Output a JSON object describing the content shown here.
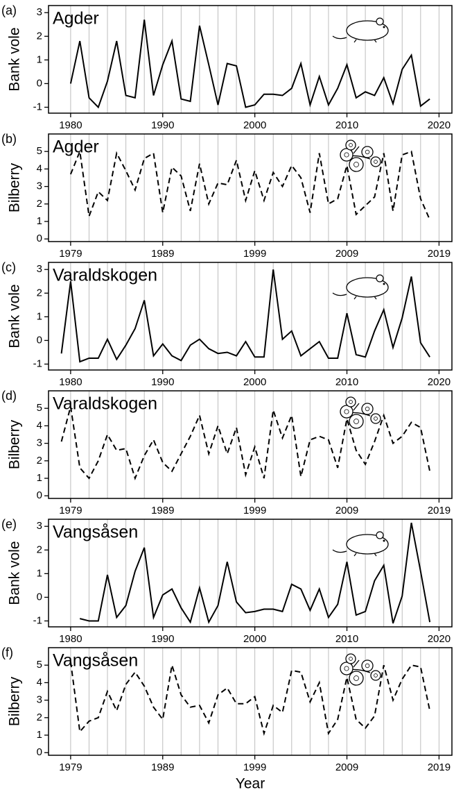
{
  "chart_data": [
    {
      "type": "line",
      "panel": "(a)",
      "title": "Agder",
      "ylabel": "Bank vole",
      "color": "#000000",
      "line_style": "solid",
      "x": [
        1980,
        1981,
        1982,
        1983,
        1984,
        1985,
        1986,
        1987,
        1988,
        1989,
        1990,
        1991,
        1992,
        1993,
        1994,
        1995,
        1996,
        1997,
        1998,
        1999,
        2000,
        2001,
        2002,
        2003,
        2004,
        2005,
        2006,
        2007,
        2008,
        2009,
        2010,
        2011,
        2012,
        2013,
        2014,
        2015,
        2016,
        2017,
        2018,
        2019
      ],
      "values": [
        0.0,
        1.8,
        -0.6,
        -1.0,
        0.1,
        1.8,
        -0.5,
        -0.6,
        2.7,
        -0.5,
        0.8,
        1.8,
        -0.65,
        -0.75,
        2.45,
        0.8,
        -0.9,
        0.85,
        0.75,
        -1.0,
        -0.9,
        -0.45,
        -0.45,
        -0.5,
        -0.2,
        0.85,
        -0.9,
        0.3,
        -0.9,
        -0.2,
        0.8,
        -0.6,
        -0.35,
        -0.5,
        0.25,
        -0.85,
        0.6,
        1.2,
        -0.95,
        -0.65
      ],
      "xlim": [
        1977.6,
        2021.4
      ],
      "xticks": [
        1980,
        1990,
        2000,
        2010,
        2020
      ],
      "xgrid": [
        1980,
        1982,
        1984,
        1986,
        1988,
        1990,
        1992,
        1994,
        1996,
        1998,
        2000,
        2002,
        2004,
        2006,
        2008,
        2010,
        2012,
        2014,
        2016,
        2018,
        2020
      ],
      "ylim": [
        -1.25,
        3.3
      ],
      "yticks": [
        -1,
        0,
        1,
        2,
        3
      ],
      "icon": "vole"
    },
    {
      "type": "line",
      "panel": "(b)",
      "title": "Agder",
      "ylabel": "Bilberry",
      "color": "#000000",
      "line_style": "dashed",
      "x": [
        1979,
        1980,
        1981,
        1982,
        1983,
        1984,
        1985,
        1986,
        1987,
        1988,
        1989,
        1990,
        1991,
        1992,
        1993,
        1994,
        1995,
        1996,
        1997,
        1998,
        1999,
        2000,
        2001,
        2002,
        2003,
        2004,
        2005,
        2006,
        2007,
        2008,
        2009,
        2010,
        2011,
        2012,
        2013,
        2014,
        2015,
        2016,
        2017,
        2018
      ],
      "values": [
        3.7,
        5.0,
        1.3,
        2.7,
        2.2,
        4.9,
        3.9,
        2.8,
        4.6,
        4.9,
        1.5,
        4.1,
        3.6,
        1.6,
        4.3,
        2.0,
        3.2,
        3.1,
        4.5,
        2.2,
        3.9,
        2.2,
        3.8,
        3.0,
        4.2,
        3.5,
        1.5,
        4.9,
        2.0,
        2.3,
        4.2,
        1.4,
        1.9,
        2.4,
        4.9,
        1.6,
        4.8,
        5.0,
        2.3,
        1.1
      ],
      "xlim": [
        1976.6,
        2020.4
      ],
      "xticks": [
        1979,
        1989,
        1999,
        2009,
        2019
      ],
      "xgrid": [
        1979,
        1981,
        1983,
        1985,
        1987,
        1989,
        1991,
        1993,
        1995,
        1997,
        1999,
        2001,
        2003,
        2005,
        2007,
        2009,
        2011,
        2013,
        2015,
        2017,
        2019
      ],
      "ylim": [
        -0.15,
        6.0
      ],
      "yticks": [
        0,
        1,
        2,
        3,
        4,
        5
      ],
      "icon": "berry"
    },
    {
      "type": "line",
      "panel": "(c)",
      "title": "Varaldskogen",
      "ylabel": "Bank vole",
      "color": "#000000",
      "line_style": "solid",
      "x": [
        1979,
        1980,
        1981,
        1982,
        1983,
        1984,
        1985,
        1986,
        1987,
        1988,
        1989,
        1990,
        1991,
        1992,
        1993,
        1994,
        1995,
        1996,
        1997,
        1998,
        1999,
        2000,
        2001,
        2002,
        2003,
        2004,
        2005,
        2006,
        2007,
        2008,
        2009,
        2010,
        2011,
        2012,
        2013,
        2014,
        2015,
        2016,
        2017,
        2018,
        2019
      ],
      "values": [
        -0.55,
        2.5,
        -0.9,
        -0.75,
        -0.75,
        0.05,
        -0.8,
        -0.2,
        0.5,
        1.7,
        -0.65,
        -0.15,
        -0.65,
        -0.85,
        -0.2,
        0.05,
        -0.35,
        -0.55,
        -0.5,
        -0.65,
        -0.05,
        -0.7,
        -0.7,
        3.0,
        0.05,
        0.4,
        -0.65,
        -0.35,
        -0.05,
        -0.75,
        -0.75,
        1.15,
        -0.6,
        -0.7,
        0.4,
        1.3,
        -0.3,
        0.95,
        2.7,
        -0.1,
        -0.7
      ],
      "xlim": [
        1977.6,
        2021.4
      ],
      "xticks": [
        1980,
        1990,
        2000,
        2010,
        2020
      ],
      "xgrid": [
        1980,
        1982,
        1984,
        1986,
        1988,
        1990,
        1992,
        1994,
        1996,
        1998,
        2000,
        2002,
        2004,
        2006,
        2008,
        2010,
        2012,
        2014,
        2016,
        2018,
        2020
      ],
      "ylim": [
        -1.25,
        3.3
      ],
      "yticks": [
        -1,
        0,
        1,
        2,
        3
      ],
      "icon": "vole"
    },
    {
      "type": "line",
      "panel": "(d)",
      "title": "Varaldskogen",
      "ylabel": "Bilberry",
      "color": "#000000",
      "line_style": "dashed",
      "x": [
        1978,
        1979,
        1980,
        1981,
        1982,
        1983,
        1984,
        1985,
        1986,
        1987,
        1988,
        1989,
        1990,
        1991,
        1992,
        1993,
        1994,
        1995,
        1996,
        1997,
        1998,
        1999,
        2000,
        2001,
        2002,
        2003,
        2004,
        2005,
        2006,
        2007,
        2008,
        2009,
        2010,
        2011,
        2012,
        2013,
        2014,
        2015,
        2016,
        2017,
        2018
      ],
      "values": [
        3.1,
        5.1,
        1.6,
        1.0,
        2.0,
        3.5,
        2.6,
        2.7,
        1.0,
        2.3,
        3.2,
        1.9,
        1.4,
        2.4,
        3.4,
        4.6,
        2.4,
        4.0,
        2.4,
        3.9,
        1.2,
        2.8,
        1.0,
        4.9,
        3.3,
        4.6,
        1.1,
        3.2,
        3.4,
        3.2,
        1.6,
        4.4,
        2.6,
        1.8,
        3.1,
        4.6,
        3.0,
        3.4,
        4.2,
        3.9,
        1.4
      ],
      "xlim": [
        1976.6,
        2020.4
      ],
      "xticks": [
        1979,
        1989,
        1999,
        2009,
        2019
      ],
      "xgrid": [
        1979,
        1981,
        1983,
        1985,
        1987,
        1989,
        1991,
        1993,
        1995,
        1997,
        1999,
        2001,
        2003,
        2005,
        2007,
        2009,
        2011,
        2013,
        2015,
        2017,
        2019
      ],
      "ylim": [
        -0.15,
        6.0
      ],
      "yticks": [
        0,
        1,
        2,
        3,
        4,
        5
      ],
      "icon": "berry"
    },
    {
      "type": "line",
      "panel": "(e)",
      "title": "Vangsåsen",
      "ylabel": "Bank vole",
      "color": "#000000",
      "line_style": "solid",
      "x": [
        1981,
        1982,
        1983,
        1984,
        1985,
        1986,
        1987,
        1988,
        1989,
        1990,
        1991,
        1992,
        1993,
        1994,
        1995,
        1996,
        1997,
        1998,
        1999,
        2000,
        2001,
        2002,
        2003,
        2004,
        2005,
        2006,
        2007,
        2008,
        2009,
        2010,
        2011,
        2012,
        2013,
        2014,
        2015,
        2016,
        2017,
        2018,
        2019
      ],
      "values": [
        -0.9,
        -1.0,
        -1.0,
        0.95,
        -0.85,
        -0.35,
        1.1,
        2.1,
        -0.85,
        0.1,
        0.35,
        -0.45,
        -1.05,
        0.4,
        -1.05,
        -0.35,
        1.5,
        -0.2,
        -0.65,
        -0.6,
        -0.5,
        -0.5,
        -0.6,
        0.55,
        0.35,
        -0.55,
        0.35,
        -0.85,
        -0.3,
        1.5,
        -0.75,
        -0.6,
        0.7,
        1.35,
        -1.1,
        0.05,
        3.15,
        1.1,
        -1.05
      ],
      "xlim": [
        1977.6,
        2021.4
      ],
      "xticks": [
        1980,
        1990,
        2000,
        2010,
        2020
      ],
      "xgrid": [
        1980,
        1982,
        1984,
        1986,
        1988,
        1990,
        1992,
        1994,
        1996,
        1998,
        2000,
        2002,
        2004,
        2006,
        2008,
        2010,
        2012,
        2014,
        2016,
        2018,
        2020
      ],
      "ylim": [
        -1.25,
        3.3
      ],
      "yticks": [
        -1,
        0,
        1,
        2,
        3
      ],
      "icon": "vole"
    },
    {
      "type": "line",
      "panel": "(f)",
      "title": "Vangsåsen",
      "ylabel": "Bilberry",
      "xlabel": "Year",
      "color": "#000000",
      "line_style": "dashed",
      "x": [
        1979,
        1980,
        1981,
        1982,
        1983,
        1984,
        1985,
        1986,
        1987,
        1988,
        1989,
        1990,
        1991,
        1992,
        1993,
        1994,
        1995,
        1996,
        1997,
        1998,
        1999,
        2000,
        2001,
        2002,
        2003,
        2004,
        2005,
        2006,
        2007,
        2008,
        2009,
        2010,
        2011,
        2012,
        2013,
        2014,
        2015,
        2016,
        2017,
        2018
      ],
      "values": [
        5.2,
        1.2,
        1.8,
        2.0,
        3.5,
        2.4,
        3.9,
        4.6,
        3.8,
        2.6,
        1.9,
        5.0,
        3.3,
        2.6,
        2.7,
        1.7,
        3.3,
        3.7,
        2.8,
        2.8,
        3.2,
        1.1,
        2.7,
        2.3,
        4.7,
        4.6,
        2.9,
        4.0,
        1.1,
        1.9,
        4.3,
        1.9,
        1.4,
        2.1,
        5.0,
        3.0,
        4.2,
        5.0,
        4.9,
        2.4
      ],
      "xlim": [
        1976.6,
        2020.4
      ],
      "xticks": [
        1979,
        1989,
        1999,
        2009,
        2019
      ],
      "xgrid": [
        1979,
        1981,
        1983,
        1985,
        1987,
        1989,
        1991,
        1993,
        1995,
        1997,
        1999,
        2001,
        2003,
        2005,
        2007,
        2009,
        2011,
        2013,
        2015,
        2017,
        2019
      ],
      "ylim": [
        -0.15,
        6.0
      ],
      "yticks": [
        0,
        1,
        2,
        3,
        4,
        5
      ],
      "icon": "berry"
    }
  ]
}
